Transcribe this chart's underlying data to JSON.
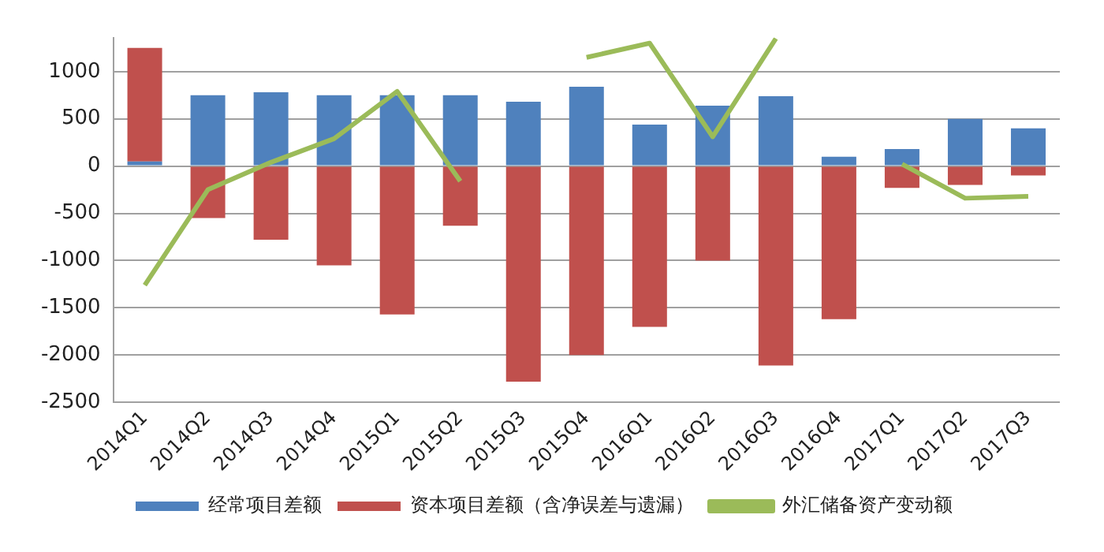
{
  "chart_data": {
    "type": "bar",
    "stacked": true,
    "categories": [
      "2014Q1",
      "2014Q2",
      "2014Q3",
      "2014Q4",
      "2015Q1",
      "2015Q2",
      "2015Q3",
      "2015Q4",
      "2016Q1",
      "2016Q2",
      "2016Q3",
      "2016Q4",
      "2017Q1",
      "2017Q2",
      "2017Q3"
    ],
    "series": [
      {
        "name": "经常项目差额",
        "color": "#4f81bd",
        "values": [
          50,
          750,
          780,
          750,
          750,
          750,
          680,
          840,
          440,
          640,
          740,
          100,
          180,
          500,
          400
        ]
      },
      {
        "name": "资本项目差额（含净误差与遗漏）",
        "color": "#c0504d",
        "values": [
          1200,
          -550,
          -780,
          -1050,
          -1570,
          -630,
          -2280,
          -2000,
          -1700,
          -1000,
          -2110,
          -1620,
          -230,
          -200,
          -100
        ]
      },
      {
        "name": "外汇储备资产变动额",
        "type": "line",
        "color": "#9bbb59",
        "marker": "none",
        "values": [
          -1260,
          -250,
          40,
          290,
          790,
          -160,
          null,
          1150,
          1300,
          310,
          1350,
          null,
          20,
          -340,
          -320
        ]
      }
    ],
    "ylim": [
      -2500,
      1360
    ],
    "yticks": [
      -2500,
      -2000,
      -1500,
      -1000,
      -500,
      0,
      500,
      1000
    ],
    "grid": "y",
    "legend": "bottom"
  }
}
